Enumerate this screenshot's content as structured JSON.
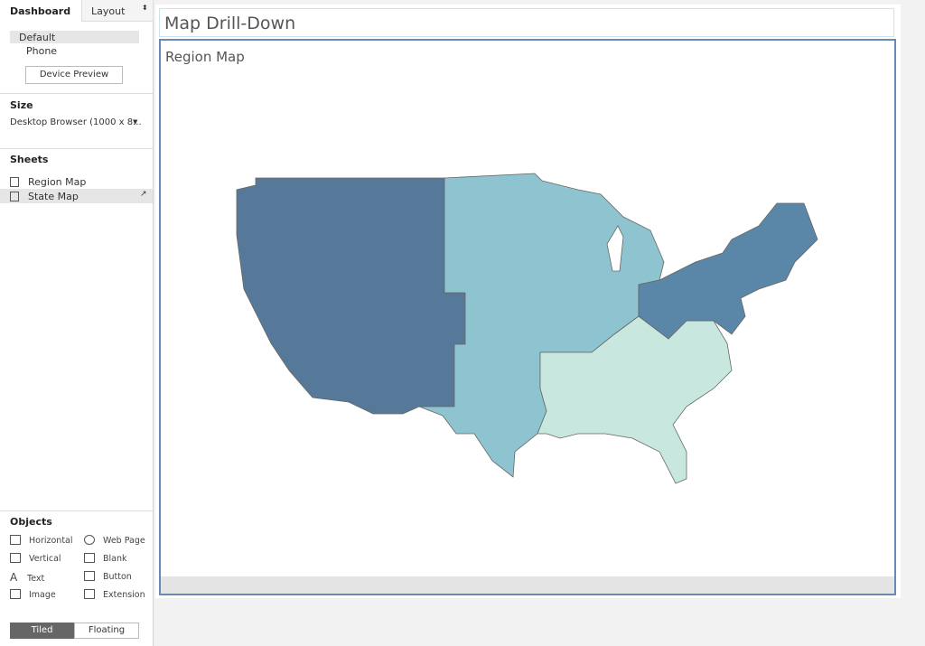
{
  "sidebar": {
    "tabs": [
      "Dashboard",
      "Layout"
    ],
    "device": {
      "items": [
        "Default",
        "Phone"
      ],
      "button": "Device Preview"
    },
    "size": {
      "title": "Size",
      "value": "Desktop Browser (1000 x 8..."
    },
    "sheets": {
      "title": "Sheets",
      "items": [
        "Region Map",
        "State Map"
      ]
    },
    "objects": {
      "title": "Objects",
      "items": [
        "Horizontal",
        "Web Page",
        "Vertical",
        "Blank",
        "Text",
        "Button",
        "Image",
        "Extension"
      ]
    },
    "layout_toggle": [
      "Tiled",
      "Floating"
    ]
  },
  "dashboard": {
    "title": "Map Drill-Down",
    "sheet_title": "Region Map"
  }
}
